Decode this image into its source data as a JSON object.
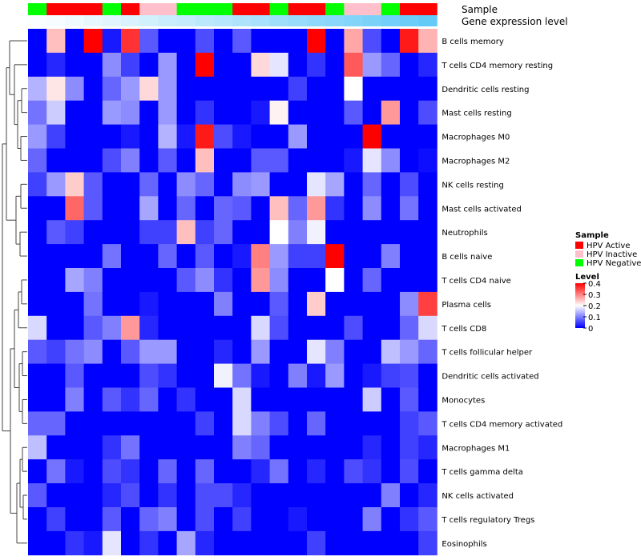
{
  "chart_data": {
    "type": "heatmap",
    "title": "",
    "annotation_tracks": [
      "Sample",
      "Gene expression level"
    ],
    "rows": [
      "B cells memory",
      "T cells CD4 memory resting",
      "Dendritic cells resting",
      "Mast cells resting",
      "Macrophages M0",
      "Macrophages M2",
      "NK cells resting",
      "Mast cells activated",
      "Neutrophils",
      "B cells naive",
      "T cells CD4 naive",
      "Plasma cells",
      "T cells CD8",
      "T cells follicular helper",
      "Dendritic cells activated",
      "Monocytes",
      "T cells CD4 memory activated",
      "Macrophages M1",
      "T cells gamma delta",
      "NK cells activated",
      "T cells regulatory  Tregs",
      "Eosinophils"
    ],
    "sample_groups": [
      "N",
      "A",
      "A",
      "A",
      "N",
      "A",
      "I",
      "I",
      "N",
      "N",
      "N",
      "A",
      "A",
      "N",
      "A",
      "A",
      "N",
      "I",
      "I",
      "N",
      "A",
      "A"
    ],
    "expression_levels": [
      0.02,
      0.05,
      0.09,
      0.13,
      0.17,
      0.21,
      0.25,
      0.3,
      0.34,
      0.38,
      0.42,
      0.46,
      0.5,
      0.55,
      0.59,
      0.63,
      0.67,
      0.71,
      0.75,
      0.8,
      0.84,
      0.88
    ],
    "values": [
      [
        0.0,
        0.25,
        0.0,
        0.4,
        0.02,
        0.36,
        0.07,
        0.0,
        0.0,
        0.06,
        0.0,
        0.07,
        0.0,
        0.0,
        0.0,
        0.4,
        0.0,
        0.27,
        0.06,
        0.0,
        0.38,
        0.26
      ],
      [
        0.0,
        0.03,
        0.0,
        0.0,
        0.11,
        0.05,
        0.0,
        0.12,
        0.0,
        0.4,
        0.0,
        0.0,
        0.23,
        0.18,
        0.0,
        0.04,
        0.0,
        0.33,
        0.12,
        0.08,
        0.0,
        0.03
      ],
      [
        0.14,
        0.22,
        0.11,
        0.0,
        0.08,
        0.12,
        0.23,
        0.12,
        0.0,
        0.0,
        0.0,
        0.0,
        0.0,
        0.0,
        0.05,
        0.0,
        0.0,
        0.2,
        0.0,
        0.0,
        0.0,
        0.0
      ],
      [
        0.09,
        0.16,
        0.0,
        0.0,
        0.12,
        0.11,
        0.0,
        0.12,
        0.0,
        0.04,
        0.0,
        0.0,
        0.02,
        0.21,
        0.0,
        0.0,
        0.0,
        0.07,
        0.0,
        0.28,
        0.0,
        0.06
      ],
      [
        0.12,
        0.05,
        0.0,
        0.0,
        0.0,
        0.02,
        0.0,
        0.14,
        0.02,
        0.38,
        0.06,
        0.02,
        0.0,
        0.0,
        0.12,
        0.0,
        0.0,
        0.0,
        0.4,
        0.0,
        0.0,
        0.0
      ],
      [
        0.08,
        0.0,
        0.0,
        0.0,
        0.06,
        0.1,
        0.0,
        0.07,
        0.0,
        0.25,
        0.0,
        0.0,
        0.07,
        0.07,
        0.0,
        0.0,
        0.0,
        0.02,
        0.18,
        0.11,
        0.0,
        0.01
      ],
      [
        0.05,
        0.12,
        0.24,
        0.07,
        0.0,
        0.0,
        0.08,
        0.0,
        0.11,
        0.08,
        0.0,
        0.11,
        0.12,
        0.0,
        0.0,
        0.18,
        0.13,
        0.0,
        0.08,
        0.0,
        0.06,
        0.0
      ],
      [
        0.0,
        0.0,
        0.32,
        0.07,
        0.0,
        0.0,
        0.13,
        0.0,
        0.08,
        0.0,
        0.08,
        0.07,
        0.0,
        0.25,
        0.08,
        0.28,
        0.04,
        0.0,
        0.11,
        0.0,
        0.09,
        0.0
      ],
      [
        0.0,
        0.07,
        0.05,
        0.0,
        0.0,
        0.0,
        0.05,
        0.05,
        0.25,
        0.05,
        0.08,
        0.0,
        0.0,
        0.2,
        0.1,
        0.19,
        0.0,
        0.0,
        0.0,
        0.0,
        0.0,
        0.0
      ],
      [
        0.0,
        0.0,
        0.0,
        0.0,
        0.09,
        0.0,
        0.0,
        0.08,
        0.0,
        0.07,
        0.0,
        0.02,
        0.3,
        0.12,
        0.05,
        0.05,
        0.4,
        0.0,
        0.0,
        0.1,
        0.0,
        0.0
      ],
      [
        0.0,
        0.0,
        0.13,
        0.1,
        0.0,
        0.0,
        0.0,
        0.0,
        0.07,
        0.11,
        0.04,
        0.0,
        0.28,
        0.11,
        0.0,
        0.0,
        0.2,
        0.0,
        0.08,
        0.0,
        0.0,
        0.0
      ],
      [
        0.0,
        0.0,
        0.0,
        0.09,
        0.0,
        0.0,
        0.02,
        0.0,
        0.0,
        0.0,
        0.1,
        0.0,
        0.0,
        0.07,
        0.0,
        0.24,
        0.0,
        0.0,
        0.0,
        0.0,
        0.11,
        0.35
      ],
      [
        0.17,
        0.0,
        0.0,
        0.07,
        0.1,
        0.28,
        0.03,
        0.0,
        0.0,
        0.0,
        0.0,
        0.0,
        0.17,
        0.06,
        0.0,
        0.0,
        0.0,
        0.06,
        0.0,
        0.0,
        0.08,
        0.17
      ],
      [
        0.07,
        0.05,
        0.09,
        0.11,
        0.0,
        0.07,
        0.12,
        0.12,
        0.0,
        0.0,
        0.03,
        0.0,
        0.12,
        0.0,
        0.0,
        0.18,
        0.1,
        0.0,
        0.0,
        0.15,
        0.12,
        0.08
      ],
      [
        0.0,
        0.0,
        0.07,
        0.0,
        0.0,
        0.0,
        0.06,
        0.04,
        0.0,
        0.0,
        0.19,
        0.09,
        0.02,
        0.0,
        0.1,
        0.02,
        0.12,
        0.0,
        0.02,
        0.05,
        0.06,
        0.0
      ],
      [
        0.0,
        0.0,
        0.1,
        0.0,
        0.07,
        0.04,
        0.08,
        0.0,
        0.04,
        0.0,
        0.0,
        0.17,
        0.0,
        0.0,
        0.0,
        0.0,
        0.0,
        0.0,
        0.16,
        0.0,
        0.07,
        0.0
      ],
      [
        0.08,
        0.08,
        0.0,
        0.0,
        0.0,
        0.0,
        0.0,
        0.0,
        0.0,
        0.05,
        0.0,
        0.17,
        0.1,
        0.06,
        0.0,
        0.08,
        0.0,
        0.0,
        0.0,
        0.0,
        0.05,
        0.07
      ],
      [
        0.15,
        0.0,
        0.0,
        0.0,
        0.04,
        0.09,
        0.0,
        0.0,
        0.0,
        0.0,
        0.0,
        0.1,
        0.08,
        0.0,
        0.0,
        0.0,
        0.0,
        0.0,
        0.03,
        0.0,
        0.05,
        0.03
      ],
      [
        0.0,
        0.09,
        0.02,
        0.0,
        0.06,
        0.04,
        0.0,
        0.08,
        0.0,
        0.08,
        0.0,
        0.0,
        0.03,
        0.09,
        0.0,
        0.03,
        0.0,
        0.06,
        0.04,
        0.0,
        0.06,
        0.0
      ],
      [
        0.07,
        0.0,
        0.0,
        0.0,
        0.03,
        0.06,
        0.0,
        0.04,
        0.0,
        0.06,
        0.06,
        0.03,
        0.0,
        0.0,
        0.0,
        0.0,
        0.0,
        0.0,
        0.0,
        0.1,
        0.0,
        0.03
      ],
      [
        0.0,
        0.05,
        0.0,
        0.0,
        0.07,
        0.0,
        0.08,
        0.1,
        0.0,
        0.06,
        0.0,
        0.05,
        0.0,
        0.0,
        0.02,
        0.0,
        0.0,
        0.0,
        0.1,
        0.0,
        0.04,
        0.07
      ],
      [
        0.0,
        0.0,
        0.04,
        0.02,
        0.18,
        0.0,
        0.04,
        0.0,
        0.13,
        0.03,
        0.0,
        0.0,
        0.0,
        0.0,
        0.0,
        0.05,
        0.0,
        0.0,
        0.0,
        0.0,
        0.0,
        0.05
      ]
    ],
    "color_scale": {
      "min": 0,
      "mid": 0.2,
      "max": 0.4,
      "low_color": "#0000ff",
      "mid_color": "#ffffff",
      "high_color": "#ff0000"
    },
    "legend": {
      "sample_title": "Sample",
      "sample_entries": [
        {
          "key": "A",
          "label": "HPV Active",
          "color": "#ff0000"
        },
        {
          "key": "I",
          "label": "HPV Inactive",
          "color": "#ffc0cb"
        },
        {
          "key": "N",
          "label": "HPV Negative",
          "color": "#00ff00"
        }
      ],
      "level_title": "Level",
      "level_ticks": [
        "0.4",
        "0.3",
        "0.2",
        "0.1",
        "0"
      ]
    },
    "expression_track_colors": {
      "low": "#ffffff",
      "high": "#4fc3f7"
    },
    "dendrogram": "rows clustered (left)"
  }
}
